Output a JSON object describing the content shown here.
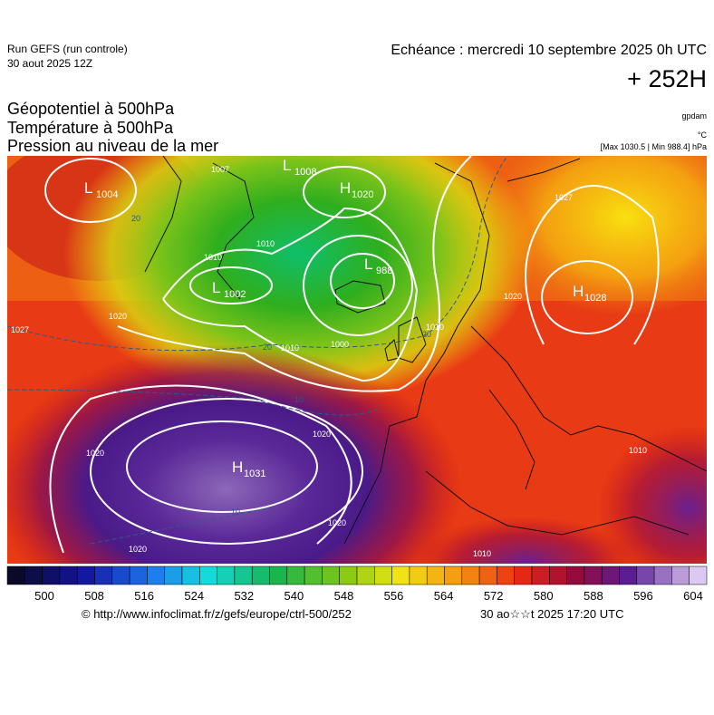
{
  "header": {
    "run": "Run GEFS (run controle)",
    "run_date": "30 aout 2025 12Z",
    "valid": "Echéance : mercredi 10 septembre 2025 0h UTC",
    "lead": "+ 252H",
    "fields": [
      "Géopotentiel à 500hPa",
      "Température à 500hPa",
      "Pression au niveau de la mer"
    ],
    "units": [
      "gpdam",
      "°C",
      "[Max 1030.5 | Min 988.4] hPa"
    ]
  },
  "map": {
    "centers": [
      {
        "letter": "H",
        "value": 1020
      },
      {
        "letter": "L",
        "value": 988
      },
      {
        "letter": "L",
        "value": 1004
      },
      {
        "letter": "L",
        "value": 1008
      },
      {
        "letter": "L",
        "value": 1002
      },
      {
        "letter": "H",
        "value": 1028
      },
      {
        "letter": "H",
        "value": 1031
      }
    ],
    "isobar_labels": [
      1020,
      1010,
      1010,
      1000,
      1010,
      1020,
      1020,
      1020,
      1020,
      1010,
      1010,
      1020,
      1010,
      1027,
      1027,
      1007
    ],
    "isotherm_labels": [
      20,
      20,
      10,
      10,
      20
    ]
  },
  "colorbar": {
    "ticks": [
      500,
      508,
      516,
      524,
      532,
      540,
      548,
      556,
      564,
      572,
      580,
      588,
      596,
      604
    ]
  },
  "footer": {
    "url": "© http://www.infoclimat.fr/z/gefs/europe/ctrl-500/252",
    "generated": "30 ao☆☆t 2025 17:20 UTC"
  }
}
